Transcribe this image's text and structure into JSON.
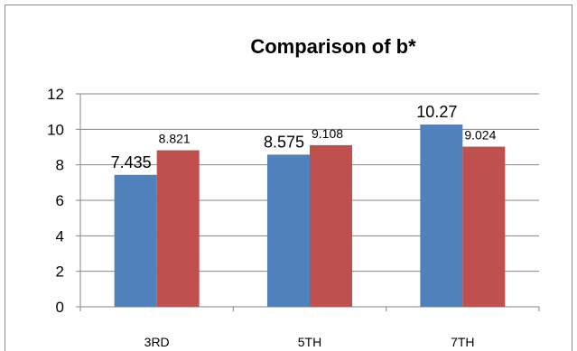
{
  "chart_data": {
    "type": "bar",
    "title": "Comparison of b*",
    "categories": [
      "3RD",
      "5TH",
      "7TH"
    ],
    "series": [
      {
        "values": [
          7.435,
          8.575,
          10.27
        ],
        "labels": [
          "7.435",
          "8.575",
          "10.27"
        ]
      },
      {
        "values": [
          8.821,
          9.108,
          9.024
        ],
        "labels": [
          "8.821",
          "9.108",
          "9.024"
        ]
      }
    ],
    "ylim": [
      0,
      12
    ],
    "yticks": [
      "0",
      "2",
      "4",
      "6",
      "8",
      "10",
      "12"
    ],
    "grid": true,
    "legend": "none"
  },
  "colors": {
    "series": [
      "#4f81bd",
      "#c0504d"
    ],
    "grid": "#868686",
    "axis": "#868686"
  }
}
